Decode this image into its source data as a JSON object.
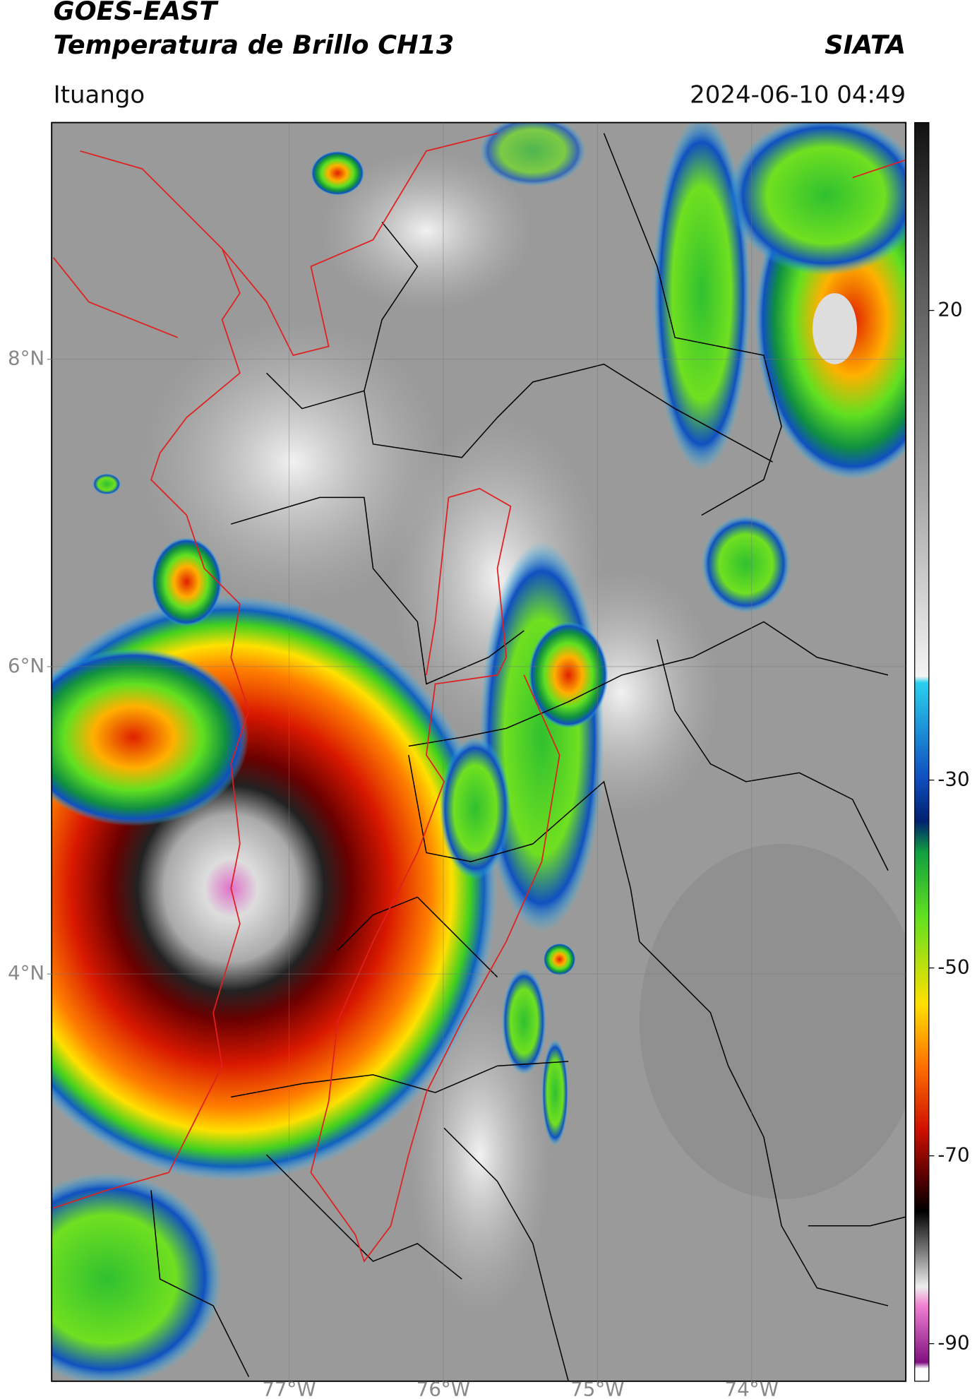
{
  "header": {
    "title": "GOES-EAST",
    "subtitle": "Temperatura de Brillo CH13",
    "source": "SIATA",
    "location": "Ituango",
    "datetime": "2024-06-10 04:49"
  },
  "map": {
    "xlim": [
      -78.54,
      -73.0
    ],
    "ylim": [
      1.35,
      9.54
    ],
    "xticks": [
      {
        "value": -77,
        "label": "77°W"
      },
      {
        "value": -76,
        "label": "76°W"
      },
      {
        "value": -75,
        "label": "75°W"
      },
      {
        "value": -74,
        "label": "74°W"
      }
    ],
    "yticks": [
      {
        "value": 8,
        "label": "8°N"
      },
      {
        "value": 6,
        "label": "6°N"
      },
      {
        "value": 4,
        "label": "4°N"
      }
    ],
    "grid": true
  },
  "colorbar": {
    "lim": [
      -94,
      40
    ],
    "ticks": [
      20,
      -30,
      -50,
      -70,
      -90
    ]
  }
}
